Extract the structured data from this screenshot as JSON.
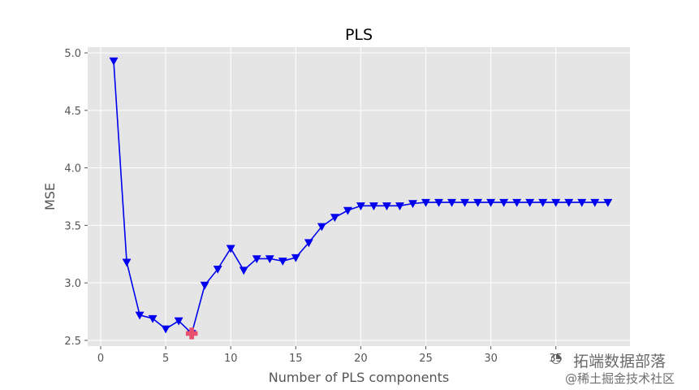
{
  "chart_data": {
    "type": "line",
    "title": "PLS",
    "xlabel": "Number of PLS components",
    "ylabel": "MSE",
    "xlim": [
      -1,
      40.7
    ],
    "ylim": [
      2.45,
      5.05
    ],
    "xticks": [
      0,
      5,
      10,
      15,
      20,
      25,
      30,
      35
    ],
    "yticks": [
      2.5,
      3.0,
      3.5,
      4.0,
      4.5,
      5.0
    ],
    "ytick_labels": [
      "2.5",
      "3.0",
      "3.5",
      "4.0",
      "4.5",
      "5.0"
    ],
    "grid": true,
    "series": [
      {
        "color": "#0000ee",
        "marker": "down-triangle",
        "x": [
          1,
          2,
          3,
          4,
          5,
          6,
          7,
          8,
          9,
          10,
          11,
          12,
          13,
          14,
          15,
          16,
          17,
          18,
          19,
          20,
          21,
          22,
          23,
          24,
          25,
          26,
          27,
          28,
          29,
          30,
          31,
          32,
          33,
          34,
          35,
          36,
          37,
          38,
          39
        ],
        "values": [
          4.93,
          3.18,
          2.72,
          2.69,
          2.6,
          2.67,
          2.56,
          2.98,
          3.12,
          3.3,
          3.11,
          3.21,
          3.21,
          3.19,
          3.22,
          3.35,
          3.49,
          3.57,
          3.63,
          3.67,
          3.67,
          3.67,
          3.67,
          3.69,
          3.7,
          3.7,
          3.7,
          3.7,
          3.7,
          3.7,
          3.7,
          3.7,
          3.7,
          3.7,
          3.7,
          3.7,
          3.7,
          3.7,
          3.7
        ]
      }
    ],
    "highlight": {
      "x": 7,
      "y": 2.56,
      "color": "#e8506e",
      "marker": "plus"
    }
  },
  "watermark": {
    "line1": "拓端数据部落",
    "line2": "@稀土掘金技术社区"
  }
}
